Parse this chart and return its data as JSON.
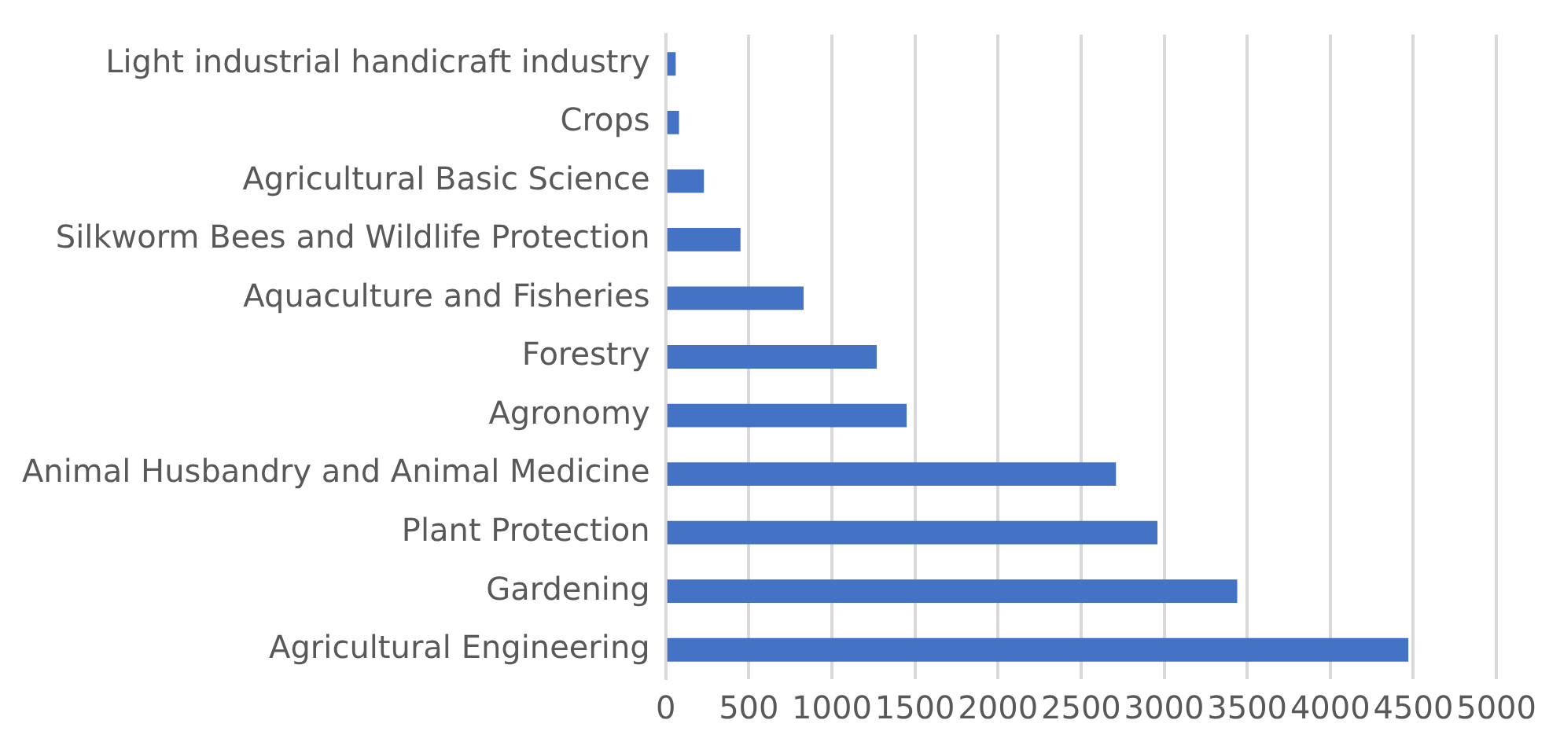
{
  "chart_data": {
    "type": "bar",
    "orientation": "horizontal",
    "categories": [
      "Light industrial handicraft industry",
      "Crops",
      "Agricultural Basic Science",
      "Silkworm Bees and Wildlife Protection",
      "Aquaculture and Fisheries",
      "Forestry",
      "Agronomy",
      "Animal Husbandry and Animal Medicine",
      "Plant Protection",
      "Gardening",
      "Agricultural Engineering"
    ],
    "values": [
      60,
      80,
      230,
      450,
      830,
      1270,
      1450,
      2710,
      2960,
      3440,
      4470
    ],
    "color": "#4472c4",
    "xlim": [
      0,
      5000
    ],
    "xticks": [
      0,
      500,
      1000,
      1500,
      2000,
      2500,
      3000,
      3500,
      4000,
      4500,
      5000
    ],
    "grid": "x",
    "legend": false
  }
}
